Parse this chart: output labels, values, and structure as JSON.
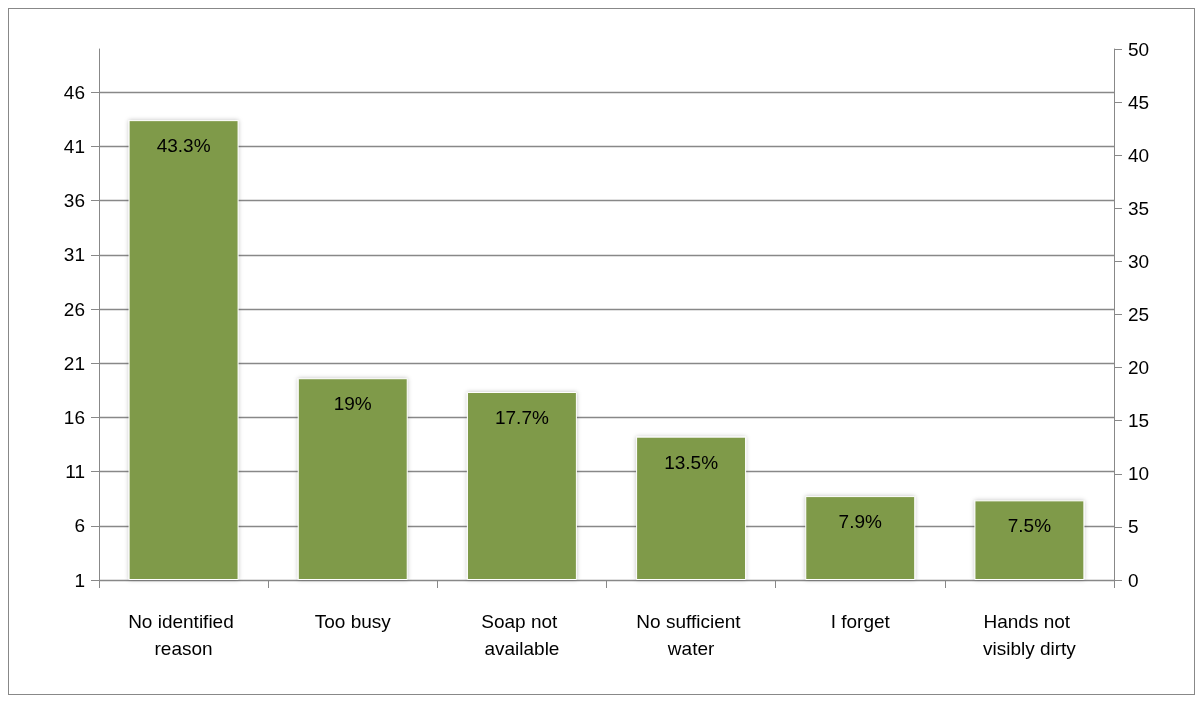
{
  "chart_data": {
    "type": "bar",
    "categories": [
      "No identified reason",
      "Too busy",
      "Soap not available",
      "No sufficient water",
      "I forget",
      "Hands not visibly dirty"
    ],
    "series": [
      {
        "color": "#7f9a48",
        "axis": "y2",
        "values": [
          43.3,
          19,
          17.7,
          13.5,
          7.9,
          7.5
        ],
        "value_labels": [
          "43.3%",
          "19%",
          "17.7%",
          "13.5%",
          "7.9%",
          "7.5%"
        ]
      }
    ],
    "ylim": [
      1,
      50
    ],
    "yticks": [
      1,
      6,
      11,
      16,
      21,
      26,
      31,
      36,
      41,
      46
    ],
    "y2lim": [
      0,
      50
    ],
    "y2ticks": [
      0,
      5,
      10,
      15,
      20,
      25,
      30,
      35,
      40,
      45,
      50
    ],
    "grid": "y"
  }
}
